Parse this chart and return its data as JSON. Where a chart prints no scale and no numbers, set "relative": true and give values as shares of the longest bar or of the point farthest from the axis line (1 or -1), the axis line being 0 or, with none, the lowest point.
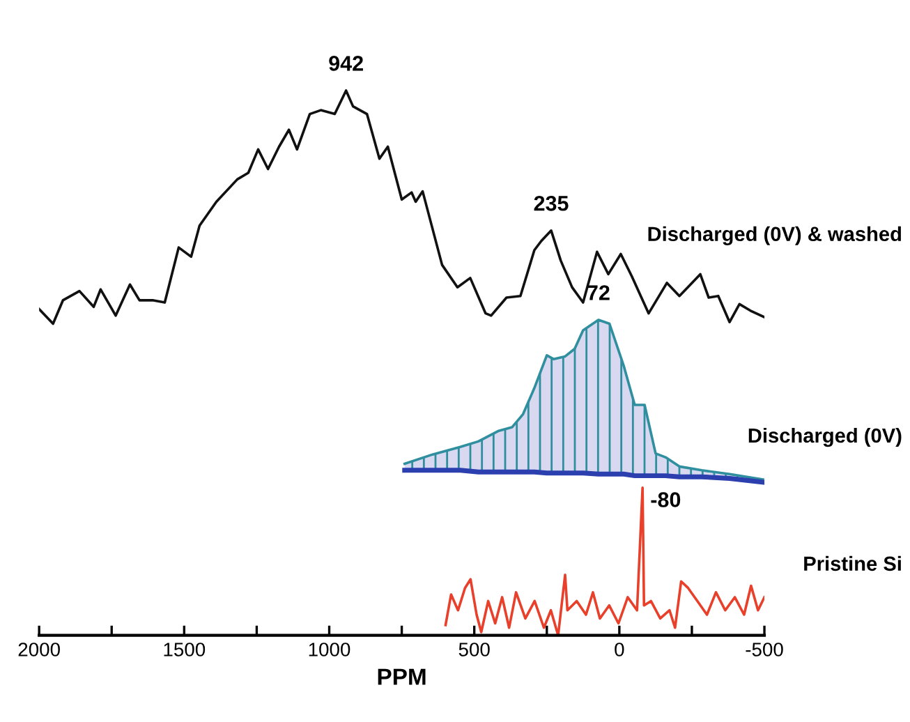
{
  "chart_data": {
    "type": "line",
    "relative": true,
    "xlabel": "PPM",
    "legend": false,
    "grid": false,
    "tick_labels": "x",
    "xlim": [
      2000,
      -500
    ],
    "xticks": [
      2000,
      {
        "value": 1750,
        "label": null
      },
      1500,
      {
        "value": 1250,
        "label": null
      },
      1000,
      {
        "value": 750,
        "label": null
      },
      500,
      {
        "value": 250,
        "label": null
      },
      0,
      {
        "value": -250,
        "label": null
      },
      -500
    ],
    "series": [
      {
        "name": "Discharged (0V) & washed",
        "color": "#111111",
        "x": [
          2000,
          1952,
          1918,
          1861,
          1812,
          1788,
          1736,
          1687,
          1654,
          1606,
          1567,
          1519,
          1476,
          1447,
          1389,
          1317,
          1279,
          1245,
          1211,
          1173,
          1139,
          1111,
          1067,
          1029,
          981,
          942,
          918,
          870,
          827,
          798,
          750,
          716,
          702,
          678,
          611,
          558,
          514,
          461,
          442,
          389,
          341,
          293,
          269,
          235,
          202,
          163,
          125,
          77,
          38,
          -5,
          -43,
          -101,
          -164,
          -207,
          -236,
          -279,
          -308,
          -341,
          -380,
          -414,
          -452,
          -500
        ],
        "values": [
          0.599,
          0.572,
          0.615,
          0.632,
          0.603,
          0.635,
          0.587,
          0.644,
          0.615,
          0.615,
          0.611,
          0.712,
          0.695,
          0.752,
          0.796,
          0.837,
          0.849,
          0.892,
          0.856,
          0.897,
          0.928,
          0.892,
          0.957,
          0.964,
          0.957,
          1.0,
          0.971,
          0.957,
          0.875,
          0.897,
          0.8,
          0.813,
          0.796,
          0.815,
          0.68,
          0.639,
          0.656,
          0.591,
          0.587,
          0.62,
          0.623,
          0.707,
          0.724,
          0.743,
          0.688,
          0.639,
          0.611,
          0.704,
          0.663,
          0.7,
          0.659,
          0.591,
          0.647,
          0.623,
          0.639,
          0.663,
          0.62,
          0.623,
          0.575,
          0.608,
          0.596,
          0.584
        ]
      },
      {
        "name": "Discharged (0V)",
        "color": "#2f8f9f",
        "x": [
          740,
          644,
          548,
          486,
          418,
          370,
          332,
          293,
          250,
          226,
          187,
          154,
          125,
          72,
          34,
          -15,
          -53,
          -87,
          -125,
          -159,
          -207,
          -284,
          -380,
          -495
        ],
        "values": [
          0.315,
          0.332,
          0.346,
          0.356,
          0.375,
          0.382,
          0.406,
          0.454,
          0.514,
          0.507,
          0.512,
          0.526,
          0.56,
          0.579,
          0.572,
          0.495,
          0.423,
          0.423,
          0.334,
          0.327,
          0.31,
          0.303,
          0.296,
          0.286
        ],
        "lower": [
          0.303,
          0.303,
          0.303,
          0.3,
          0.3,
          0.3,
          0.3,
          0.3,
          0.298,
          0.298,
          0.298,
          0.298,
          0.298,
          0.296,
          0.296,
          0.296,
          0.293,
          0.293,
          0.293,
          0.293,
          0.291,
          0.291,
          0.288,
          0.281
        ],
        "upper": [
          0.315,
          0.332,
          0.346,
          0.356,
          0.375,
          0.382,
          0.406,
          0.454,
          0.514,
          0.507,
          0.512,
          0.526,
          0.56,
          0.579,
          0.572,
          0.495,
          0.423,
          0.423,
          0.334,
          0.327,
          0.31,
          0.303,
          0.296,
          0.286
        ]
      },
      {
        "color": "#2b3fae",
        "x": [
          740,
          644,
          548,
          486,
          418,
          370,
          332,
          293,
          250,
          226,
          187,
          154,
          125,
          72,
          34,
          -15,
          -53,
          -87,
          -125,
          -159,
          -207,
          -284,
          -380,
          -495
        ],
        "values": [
          0.303,
          0.303,
          0.303,
          0.3,
          0.3,
          0.3,
          0.3,
          0.3,
          0.298,
          0.298,
          0.298,
          0.298,
          0.298,
          0.296,
          0.296,
          0.296,
          0.293,
          0.293,
          0.293,
          0.293,
          0.291,
          0.291,
          0.288,
          0.281
        ]
      },
      {
        "name": "Pristine Si",
        "color": "#e8402a",
        "x": [
          599,
          580,
          556,
          532,
          513,
          492,
          476,
          452,
          428,
          404,
          380,
          356,
          324,
          292,
          260,
          236,
          211,
          187,
          179,
          147,
          115,
          91,
          67,
          35,
          3,
          -29,
          -61,
          -80,
          -85,
          -109,
          -141,
          -173,
          -192,
          -213,
          -237,
          -269,
          -302,
          -333,
          -365,
          -398,
          -430,
          -454,
          -478,
          -500
        ],
        "values": [
          0.019,
          0.075,
          0.046,
          0.087,
          0.103,
          0.038,
          0.006,
          0.063,
          0.022,
          0.07,
          0.014,
          0.079,
          0.031,
          0.063,
          0.014,
          0.046,
          0.0,
          0.111,
          0.046,
          0.063,
          0.038,
          0.079,
          0.031,
          0.055,
          0.022,
          0.07,
          0.046,
          0.271,
          0.055,
          0.063,
          0.031,
          0.046,
          0.014,
          0.099,
          0.087,
          0.063,
          0.038,
          0.079,
          0.046,
          0.07,
          0.038,
          0.091,
          0.046,
          0.07
        ]
      }
    ],
    "annotations": [
      {
        "text": "942",
        "x": 942,
        "y": 1.0
      },
      {
        "text": "235",
        "x": 235,
        "y": 0.743
      },
      {
        "text": "72",
        "x": 72,
        "y": 0.579
      },
      {
        "text": "-80",
        "x": -80,
        "y": 0.271
      }
    ]
  }
}
